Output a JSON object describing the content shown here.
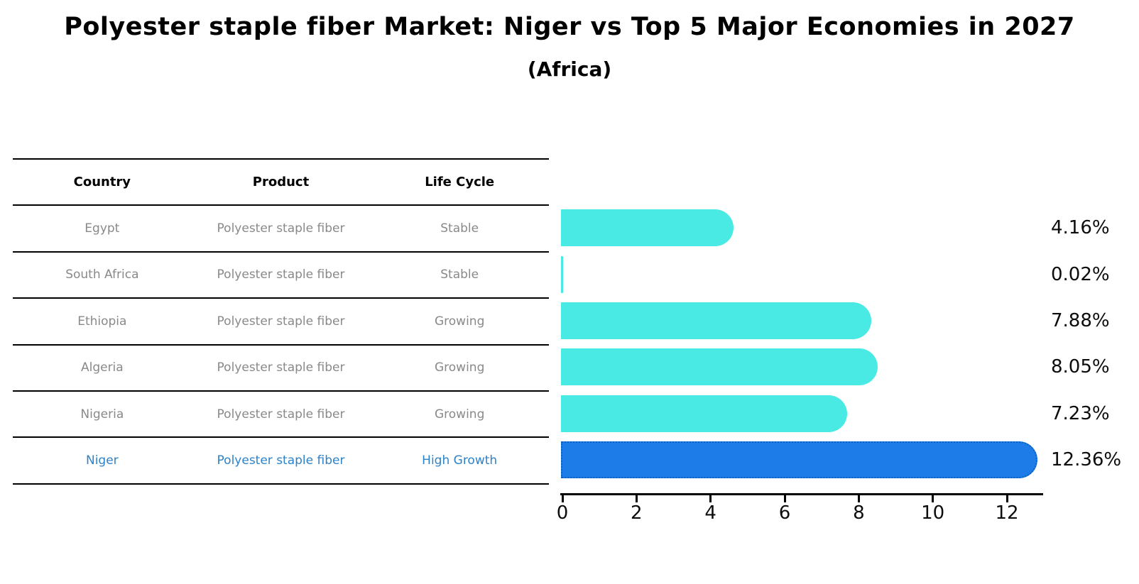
{
  "title": "Polyester staple fiber Market: Niger vs Top 5 Major Economies in 2027",
  "subtitle": "(Africa)",
  "table": {
    "headers": [
      "Country",
      "Product",
      "Life Cycle"
    ],
    "rows": [
      {
        "country": "Egypt",
        "product": "Polyester staple fiber",
        "life_cycle": "Stable",
        "highlight": false
      },
      {
        "country": "South Africa",
        "product": "Polyester staple fiber",
        "life_cycle": "Stable",
        "highlight": false
      },
      {
        "country": "Ethiopia",
        "product": "Polyester staple fiber",
        "life_cycle": "Growing",
        "highlight": false
      },
      {
        "country": "Algeria",
        "product": "Polyester staple fiber",
        "life_cycle": "Growing",
        "highlight": false
      },
      {
        "country": "Nigeria",
        "product": "Polyester staple fiber",
        "life_cycle": "Growing",
        "highlight": false
      },
      {
        "country": "Niger",
        "product": "Polyester staple fiber",
        "life_cycle": "High Growth",
        "highlight": true
      }
    ]
  },
  "chart_data": {
    "type": "bar",
    "orientation": "horizontal",
    "title": "Polyester staple fiber Market: Niger vs Top 5 Major Economies in 2027 (Africa)",
    "categories": [
      "Egypt",
      "South Africa",
      "Ethiopia",
      "Algeria",
      "Nigeria",
      "Niger"
    ],
    "values": [
      4.16,
      0.02,
      7.88,
      8.05,
      7.23,
      12.36
    ],
    "value_labels": [
      "4.16%",
      "0.02%",
      "7.88%",
      "8.05%",
      "7.23%",
      "12.36%"
    ],
    "x_ticks": [
      0,
      2,
      4,
      6,
      8,
      10,
      12
    ],
    "xlim": [
      0,
      13
    ],
    "grid": false,
    "legend": null,
    "highlight_index": 5,
    "bar_color_default": "#49e9e4",
    "bar_color_highlight": "#1d7ce8",
    "highlight_border_color": "#0d5fc0"
  },
  "colors": {
    "row_text": "#898989",
    "highlight_text": "#2e82c8",
    "text": "#000000"
  }
}
